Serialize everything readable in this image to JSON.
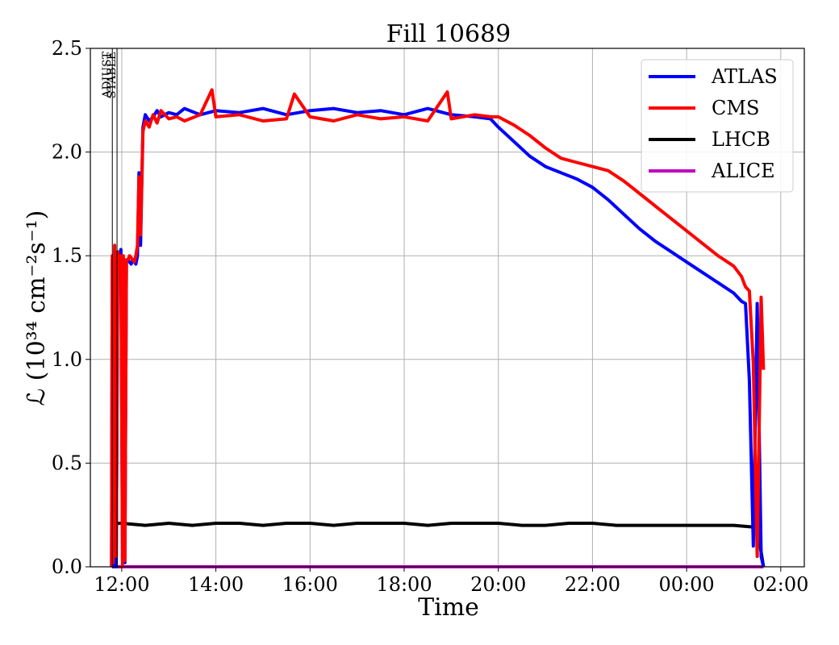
{
  "chart_data": {
    "type": "line",
    "title": "Fill 10689",
    "xlabel": "Time",
    "ylabel": "ℒ (10³⁴ cm⁻²s⁻¹)",
    "xlim": [
      "11:20",
      "26:30"
    ],
    "ylim": [
      0,
      2.5
    ],
    "x_ticks": [
      "12:00",
      "14:00",
      "16:00",
      "18:00",
      "20:00",
      "22:00",
      "00:00",
      "02:00"
    ],
    "y_ticks": [
      "0.0",
      "0.5",
      "1.0",
      "1.5",
      "2.0",
      "2.5"
    ],
    "grid": true,
    "legend_position": "top-right",
    "markers": [
      {
        "label": "ADJUST",
        "time": "11:48"
      },
      {
        "label": "STABLE",
        "time": "11:54"
      }
    ],
    "series": [
      {
        "name": "ATLAS",
        "color": "#0000ff",
        "x": [
          "11:47",
          "11:48",
          "11:49",
          "11:51",
          "11:53",
          "11:55",
          "11:57",
          "11:59",
          "12:01",
          "12:02",
          "12:04",
          "12:06",
          "12:08",
          "12:10",
          "12:12",
          "12:14",
          "12:16",
          "12:18",
          "12:20",
          "12:22",
          "12:24",
          "12:27",
          "12:30",
          "12:35",
          "12:40",
          "12:45",
          "12:50",
          "13:00",
          "13:10",
          "13:20",
          "13:40",
          "14:00",
          "14:30",
          "15:00",
          "15:30",
          "16:00",
          "16:30",
          "17:00",
          "17:30",
          "18:00",
          "18:30",
          "19:00",
          "19:30",
          "19:50",
          "20:00",
          "20:20",
          "20:40",
          "21:00",
          "21:20",
          "21:40",
          "22:00",
          "22:20",
          "22:40",
          "23:00",
          "23:20",
          "23:40",
          "24:00",
          "24:20",
          "24:40",
          "25:00",
          "25:10",
          "25:15",
          "25:20",
          "25:25",
          "25:30",
          "25:35",
          "25:38"
        ],
        "y": [
          0.0,
          1.48,
          0.0,
          1.52,
          0.0,
          1.5,
          1.48,
          1.53,
          0.03,
          1.49,
          0.02,
          1.47,
          1.48,
          1.47,
          1.46,
          1.48,
          1.47,
          1.46,
          1.5,
          1.9,
          1.55,
          2.12,
          2.18,
          2.15,
          2.17,
          2.2,
          2.17,
          2.19,
          2.18,
          2.21,
          2.18,
          2.2,
          2.19,
          2.21,
          2.18,
          2.2,
          2.21,
          2.19,
          2.2,
          2.18,
          2.21,
          2.18,
          2.17,
          2.16,
          2.12,
          2.05,
          1.98,
          1.93,
          1.9,
          1.87,
          1.83,
          1.77,
          1.7,
          1.63,
          1.57,
          1.52,
          1.47,
          1.42,
          1.37,
          1.32,
          1.28,
          1.27,
          0.9,
          0.1,
          1.27,
          0.05,
          0.0
        ]
      },
      {
        "name": "CMS",
        "color": "#ff0000",
        "x": [
          "11:47",
          "11:48",
          "11:49",
          "11:51",
          "11:53",
          "11:55",
          "11:57",
          "11:59",
          "12:01",
          "12:02",
          "12:04",
          "12:06",
          "12:08",
          "12:10",
          "12:12",
          "12:14",
          "12:16",
          "12:18",
          "12:20",
          "12:22",
          "12:24",
          "12:27",
          "12:30",
          "12:35",
          "12:40",
          "12:45",
          "12:50",
          "13:00",
          "13:10",
          "13:20",
          "13:40",
          "13:55",
          "14:00",
          "14:30",
          "15:00",
          "15:30",
          "15:40",
          "16:00",
          "16:30",
          "17:00",
          "17:30",
          "18:00",
          "18:30",
          "18:55",
          "19:00",
          "19:30",
          "19:50",
          "20:00",
          "20:20",
          "20:40",
          "21:00",
          "21:20",
          "21:40",
          "22:00",
          "22:20",
          "22:40",
          "23:00",
          "23:20",
          "23:40",
          "24:00",
          "24:20",
          "24:40",
          "25:00",
          "25:10",
          "25:15",
          "25:20",
          "25:25",
          "25:30",
          "25:35",
          "25:38"
        ],
        "y": [
          0.0,
          1.5,
          0.02,
          1.55,
          0.05,
          1.52,
          1.45,
          1.5,
          0.0,
          1.5,
          0.03,
          1.48,
          1.48,
          1.5,
          1.49,
          1.48,
          1.47,
          1.5,
          1.55,
          1.88,
          1.6,
          2.1,
          2.15,
          2.12,
          2.18,
          2.14,
          2.2,
          2.16,
          2.17,
          2.15,
          2.18,
          2.3,
          2.17,
          2.18,
          2.15,
          2.16,
          2.28,
          2.17,
          2.15,
          2.18,
          2.16,
          2.17,
          2.15,
          2.29,
          2.16,
          2.18,
          2.17,
          2.17,
          2.13,
          2.08,
          2.02,
          1.97,
          1.95,
          1.93,
          1.91,
          1.86,
          1.8,
          1.74,
          1.68,
          1.62,
          1.56,
          1.5,
          1.45,
          1.4,
          1.35,
          1.33,
          0.98,
          0.05,
          1.3,
          0.95
        ]
      },
      {
        "name": "LHCB",
        "color": "#000000",
        "x": [
          "11:48",
          "11:49",
          "11:52",
          "11:55",
          "12:00",
          "12:30",
          "13:00",
          "13:30",
          "14:00",
          "14:30",
          "15:00",
          "15:30",
          "16:00",
          "16:30",
          "17:00",
          "17:30",
          "18:00",
          "18:30",
          "19:00",
          "19:30",
          "20:00",
          "20:30",
          "21:00",
          "21:30",
          "22:00",
          "22:30",
          "23:00",
          "23:30",
          "24:00",
          "24:30",
          "25:00",
          "25:30",
          "25:38"
        ],
        "y": [
          0.0,
          0.22,
          0.2,
          0.21,
          0.21,
          0.2,
          0.21,
          0.2,
          0.21,
          0.21,
          0.2,
          0.21,
          0.21,
          0.2,
          0.21,
          0.21,
          0.21,
          0.2,
          0.21,
          0.21,
          0.21,
          0.2,
          0.2,
          0.21,
          0.21,
          0.2,
          0.2,
          0.2,
          0.2,
          0.2,
          0.2,
          0.19,
          0.0
        ]
      },
      {
        "name": "ALICE",
        "color": "#bf00bf",
        "x": [
          "11:48",
          "25:38"
        ],
        "y": [
          0.0,
          0.0
        ]
      }
    ]
  }
}
